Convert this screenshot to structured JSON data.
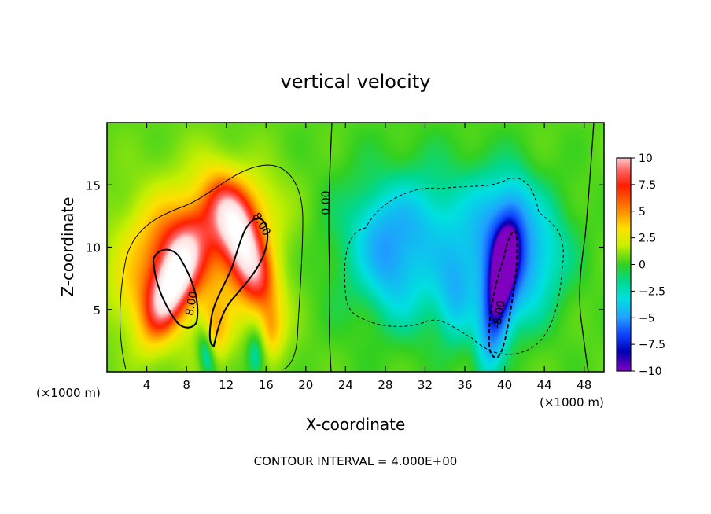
{
  "chart_data": {
    "type": "heatmap",
    "title": "vertical velocity",
    "xlabel": "X-coordinate",
    "ylabel": "Z-coordinate",
    "x_unit_label_left": "(×1000 m)",
    "x_unit_label_right": "(×1000 m)",
    "xlim": [
      0,
      50
    ],
    "ylim": [
      0,
      20
    ],
    "x_ticks": [
      4,
      8,
      12,
      16,
      20,
      24,
      28,
      32,
      36,
      40,
      44,
      48
    ],
    "y_ticks": [
      5,
      10,
      15
    ],
    "colorbar": {
      "range": [
        -10,
        10
      ],
      "tick_labels": [
        "10",
        "7.5",
        "5",
        "2.5",
        "0",
        "−2.5",
        "−5",
        "−7.5",
        "−10"
      ],
      "tick_values": [
        10,
        7.5,
        5,
        2.5,
        0,
        -2.5,
        -5,
        -7.5,
        -10
      ]
    },
    "contour_labels": [
      "8.00",
      "8.00",
      "0.00",
      "-8.00"
    ],
    "contour_interval": "CONTOUR INTERVAL = 4.000E+00",
    "features": [
      {
        "sign": "positive",
        "x": 6.5,
        "z": 6.5,
        "peak": 10
      },
      {
        "sign": "positive",
        "x": 13.5,
        "z": 8.5,
        "peak": 10
      },
      {
        "sign": "negative",
        "x": 39.5,
        "z": 6.0,
        "peak": -10
      },
      {
        "sign": "negative",
        "x": 31,
        "z": 10,
        "peak": -6
      }
    ]
  }
}
